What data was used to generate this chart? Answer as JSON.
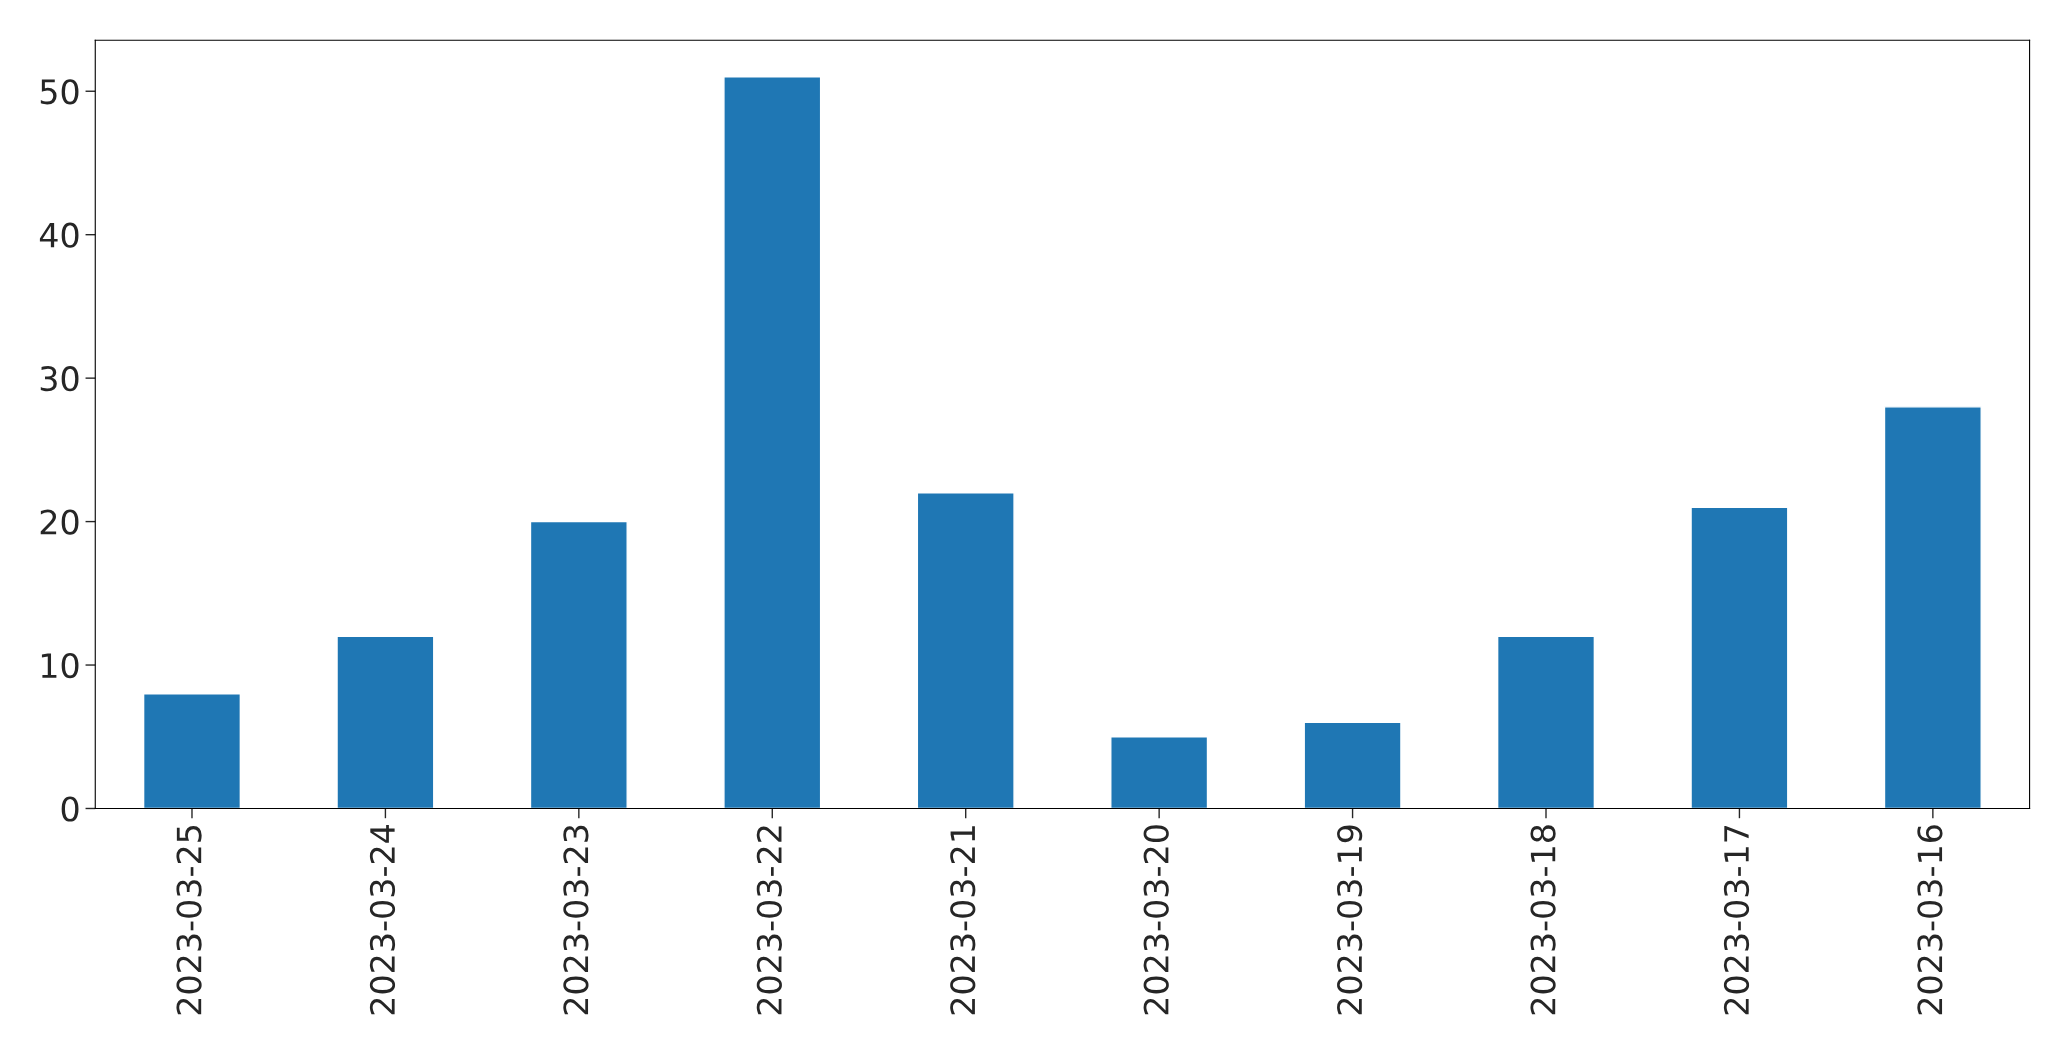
{
  "chart_data": {
    "type": "bar",
    "categories": [
      "2023-03-25",
      "2023-03-24",
      "2023-03-23",
      "2023-03-22",
      "2023-03-21",
      "2023-03-20",
      "2023-03-19",
      "2023-03-18",
      "2023-03-17",
      "2023-03-16"
    ],
    "values": [
      8,
      12,
      20,
      51,
      22,
      5,
      6,
      12,
      21,
      28
    ],
    "color": "#1f77b4",
    "ylim": [
      0,
      53.55
    ],
    "yticks": [
      0,
      10,
      20,
      30,
      40,
      50
    ],
    "grid": false
  }
}
